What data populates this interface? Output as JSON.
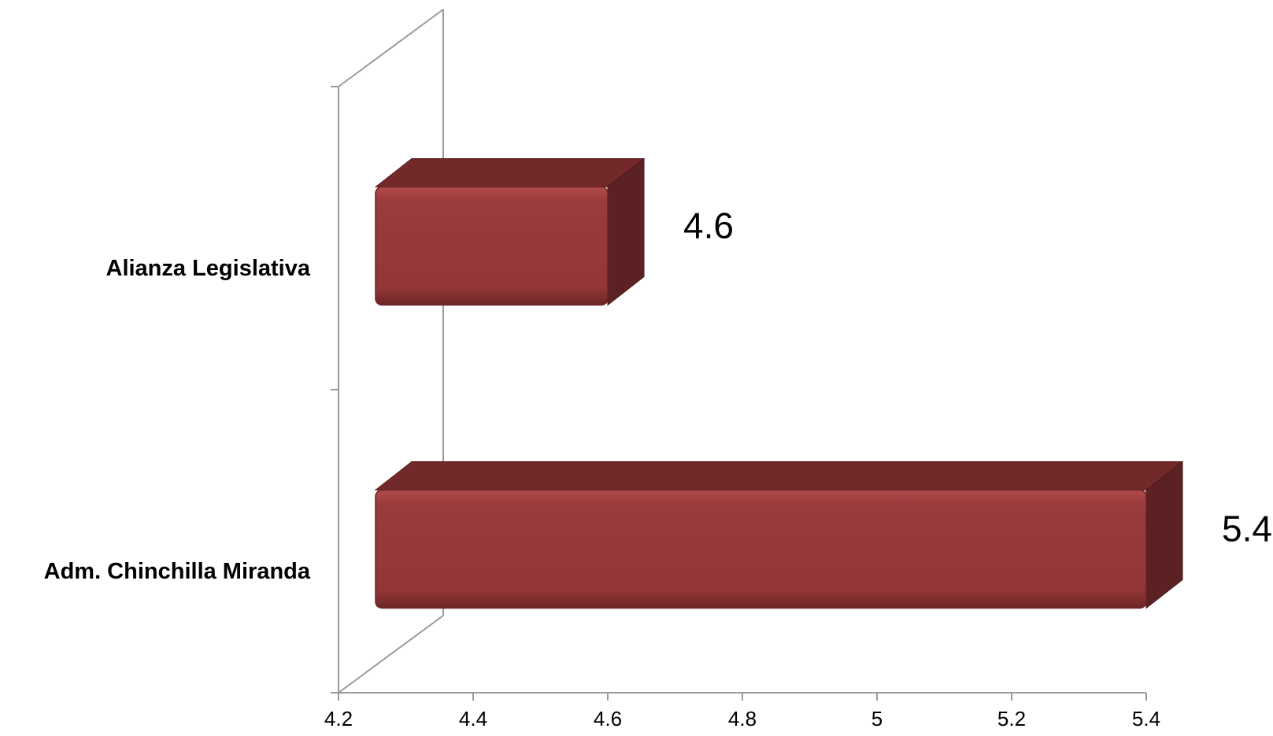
{
  "chart_data": {
    "type": "bar",
    "orientation": "horizontal",
    "style": "3d",
    "title": "",
    "xlabel": "",
    "ylabel": "",
    "categories": [
      "Alianza Legislativa",
      "Adm. Chinchilla Miranda"
    ],
    "values": [
      4.6,
      5.4
    ],
    "data_labels": [
      "4.6",
      "5.4"
    ],
    "xlim": [
      4.2,
      5.4
    ],
    "x_ticks": [
      "4.2",
      "4.4",
      "4.6",
      "4.8",
      "5",
      "5.2",
      "5.4"
    ],
    "grid": false,
    "legend": "none",
    "colors": {
      "bar_front": "#96393A",
      "bar_top": "#73282A",
      "bar_side": "#5C2122",
      "axis": "#9A9A9A"
    }
  }
}
